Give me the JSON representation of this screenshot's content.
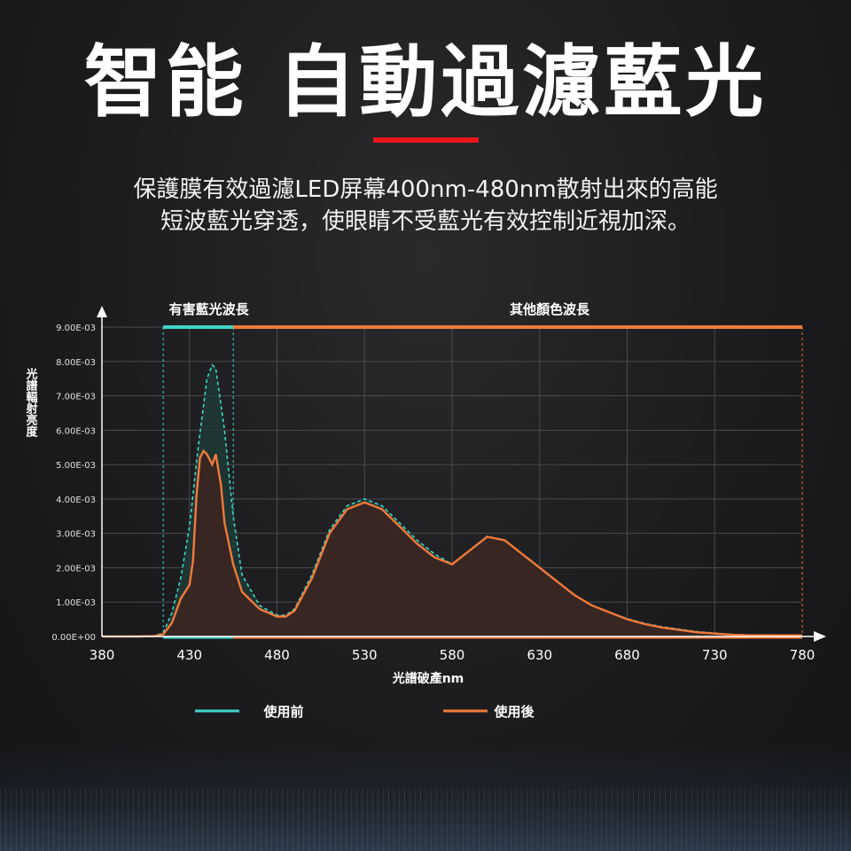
{
  "page": {
    "title": "智能 自動過濾藍光",
    "subtitle_line1": "保護膜有效過濾LED屏幕400nm-480nm散射出來的高能",
    "subtitle_line2": "短波藍光穿透，使眼睛不受藍光有效控制近視加深。"
  },
  "colors": {
    "accent": "#e8161b",
    "before": "#3fd6c8",
    "after": "#f07a3a",
    "fill": "#3a2622",
    "grid": "#4a4a4e"
  },
  "chart_data": {
    "type": "line",
    "xlabel": "光譜破產nm",
    "ylabel": "光譜輻射亮度",
    "xlim": [
      380,
      780
    ],
    "ylim": [
      0,
      0.009
    ],
    "x_ticks": [
      "380",
      "430",
      "480",
      "530",
      "580",
      "630",
      "680",
      "730",
      "780"
    ],
    "y_ticks": [
      "0.00E+00",
      "1.00E-03",
      "2.00E-03",
      "3.00E-03",
      "4.00E-03",
      "5.00E-03",
      "6.00E-03",
      "7.00E-03",
      "8.00E-03",
      "9.00E-03"
    ],
    "band_labels": [
      {
        "label": "有害藍光波長",
        "from": 415,
        "to": 455
      },
      {
        "label": "其他顏色波長",
        "from": 455,
        "to": 780
      }
    ],
    "series": [
      {
        "name": "使用前",
        "x": [
          380,
          400,
          410,
          415,
          420,
          425,
          430,
          435,
          440,
          443,
          445,
          450,
          455,
          460,
          470,
          480,
          485,
          490,
          500,
          510,
          520,
          530,
          540,
          550,
          560,
          570,
          580,
          590,
          600,
          610,
          620,
          630,
          640,
          650,
          660,
          670,
          680,
          690,
          700,
          720,
          740,
          760,
          780
        ],
        "y": [
          0.0,
          0.0,
          2e-05,
          0.0001,
          0.0007,
          0.0017,
          0.0032,
          0.0055,
          0.0075,
          0.0079,
          0.0078,
          0.006,
          0.0035,
          0.0018,
          0.0009,
          0.00062,
          0.00062,
          0.0008,
          0.0018,
          0.0031,
          0.0038,
          0.004,
          0.0038,
          0.0033,
          0.0028,
          0.0024,
          0.0021,
          0.0025,
          0.0029,
          0.0028,
          0.0024,
          0.002,
          0.0016,
          0.0012,
          0.0009,
          0.0007,
          0.00052,
          0.00038,
          0.00028,
          0.00014,
          6e-05,
          2e-05,
          0.0
        ]
      },
      {
        "name": "使用後",
        "x": [
          380,
          400,
          410,
          415,
          420,
          425,
          430,
          432,
          434,
          436,
          438,
          440,
          443,
          445,
          448,
          450,
          455,
          460,
          470,
          480,
          485,
          490,
          500,
          510,
          520,
          530,
          540,
          550,
          560,
          570,
          580,
          590,
          600,
          610,
          620,
          630,
          640,
          650,
          660,
          670,
          680,
          690,
          700,
          720,
          740,
          760,
          780
        ],
        "y": [
          0.0,
          0.0,
          1e-05,
          6e-05,
          0.0004,
          0.0011,
          0.0015,
          0.0022,
          0.0041,
          0.0052,
          0.0054,
          0.0053,
          0.005,
          0.0053,
          0.0044,
          0.0033,
          0.0021,
          0.0013,
          0.0008,
          0.00058,
          0.00058,
          0.00075,
          0.0017,
          0.003,
          0.0037,
          0.0039,
          0.0037,
          0.0032,
          0.0027,
          0.0023,
          0.0021,
          0.0025,
          0.0029,
          0.0028,
          0.0024,
          0.002,
          0.0016,
          0.0012,
          0.0009,
          0.0007,
          0.0005,
          0.00036,
          0.00026,
          0.00012,
          5e-05,
          2e-05,
          0.0
        ]
      }
    ],
    "legend": [
      {
        "label": "使用前",
        "color": "#3fd6c8"
      },
      {
        "label": "使用後",
        "color": "#f07a3a"
      }
    ]
  }
}
